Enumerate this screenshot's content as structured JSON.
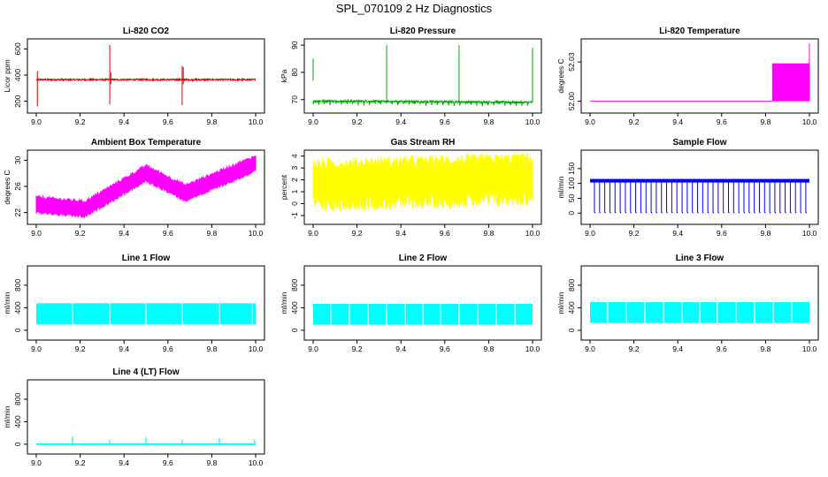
{
  "page_title": "SPL_070109  2 Hz Diagnostics",
  "chart_data": [
    {
      "type": "line",
      "title": "Li-820 CO2",
      "ylabel": "Licor ppm",
      "color": "#dd0000",
      "xlim": [
        9.0,
        10.0
      ],
      "ylim": [
        150,
        650
      ],
      "x_ticks": [
        9.0,
        9.2,
        9.4,
        9.6,
        9.8,
        10.0
      ],
      "x_tick_labels": [
        "9.0",
        "9.2",
        "9.4",
        "9.6",
        "9.8",
        "10.0"
      ],
      "y_ticks": [
        200,
        400,
        600
      ],
      "y_tick_labels": [
        "200",
        "400",
        "600"
      ],
      "pattern": "co2",
      "baseline": 365
    },
    {
      "type": "line",
      "title": "Li-820 Pressure",
      "ylabel": "kPa",
      "color": "#00aa00",
      "xlim": [
        9.0,
        10.0
      ],
      "ylim": [
        67,
        91
      ],
      "x_ticks": [
        9.0,
        9.2,
        9.4,
        9.6,
        9.8,
        10.0
      ],
      "x_tick_labels": [
        "9.0",
        "9.2",
        "9.4",
        "9.6",
        "9.8",
        "10.0"
      ],
      "y_ticks": [
        70,
        80,
        90
      ],
      "y_tick_labels": [
        "70",
        "80",
        "90"
      ],
      "pattern": "pressure",
      "baseline": 69.5
    },
    {
      "type": "line",
      "title": "Li-820 Temperature",
      "ylabel": "degrees C",
      "color": "#ff00ff",
      "xlim": [
        9.0,
        10.0
      ],
      "ylim": [
        51.995,
        52.045
      ],
      "x_ticks": [
        9.0,
        9.2,
        9.4,
        9.6,
        9.8,
        10.0
      ],
      "x_tick_labels": [
        "9.0",
        "9.2",
        "9.4",
        "9.6",
        "9.8",
        "10.0"
      ],
      "y_ticks": [
        52.0,
        52.03
      ],
      "y_tick_labels": [
        "52.00",
        "52.03"
      ],
      "pattern": "temp",
      "baseline": 52.0
    },
    {
      "type": "line",
      "title": "Ambient Box Temperature",
      "ylabel": "degrees C",
      "color": "#ff00ff",
      "xlim": [
        9.0,
        10.0
      ],
      "ylim": [
        21,
        31
      ],
      "x_ticks": [
        9.0,
        9.2,
        9.4,
        9.6,
        9.8,
        10.0
      ],
      "x_tick_labels": [
        "9.0",
        "9.2",
        "9.4",
        "9.6",
        "9.8",
        "10.0"
      ],
      "y_ticks": [
        22,
        26,
        30
      ],
      "y_tick_labels": [
        "22",
        "26",
        "30"
      ],
      "pattern": "ambient",
      "baseline": 23
    },
    {
      "type": "line",
      "title": "Gas Stream RH",
      "ylabel": "percent",
      "color": "#ffff00",
      "xlim": [
        9.0,
        10.0
      ],
      "ylim": [
        -1.3,
        4.2
      ],
      "x_ticks": [
        9.0,
        9.2,
        9.4,
        9.6,
        9.8,
        10.0
      ],
      "x_tick_labels": [
        "9.0",
        "9.2",
        "9.4",
        "9.6",
        "9.8",
        "10.0"
      ],
      "y_ticks": [
        -1,
        0,
        1,
        2,
        3,
        4
      ],
      "y_tick_labels": [
        "-1",
        "0",
        "1",
        "2",
        "3",
        "4"
      ],
      "pattern": "rh",
      "baseline": 2
    },
    {
      "type": "line",
      "title": "Sample Flow",
      "ylabel": "ml/min",
      "color": "#0000ff",
      "xlim": [
        9.0,
        10.0
      ],
      "ylim": [
        -20,
        200
      ],
      "x_ticks": [
        9.0,
        9.2,
        9.4,
        9.6,
        9.8,
        10.0
      ],
      "x_tick_labels": [
        "9.0",
        "9.2",
        "9.4",
        "9.6",
        "9.8",
        "10.0"
      ],
      "y_ticks": [
        0,
        50,
        100,
        150
      ],
      "y_tick_labels": [
        "0",
        "50",
        "100",
        "150"
      ],
      "pattern": "sample",
      "baseline": 110
    },
    {
      "type": "line",
      "title": "Line 1 Flow",
      "ylabel": "ml/min",
      "color": "#00ffff",
      "xlim": [
        9.0,
        10.0
      ],
      "ylim": [
        -80,
        1080
      ],
      "x_ticks": [
        9.0,
        9.2,
        9.4,
        9.6,
        9.8,
        10.0
      ],
      "x_tick_labels": [
        "9.0",
        "9.2",
        "9.4",
        "9.6",
        "9.8",
        "10.0"
      ],
      "y_ticks": [
        0,
        400,
        800
      ],
      "y_tick_labels": [
        "0",
        "400",
        "800"
      ],
      "pattern": "line",
      "baseline": 300
    },
    {
      "type": "line",
      "title": "Line 2 Flow",
      "ylabel": "ml/min",
      "color": "#00ffff",
      "xlim": [
        9.0,
        10.0
      ],
      "ylim": [
        -80,
        1080
      ],
      "x_ticks": [
        9.0,
        9.2,
        9.4,
        9.6,
        9.8,
        10.0
      ],
      "x_tick_labels": [
        "9.0",
        "9.2",
        "9.4",
        "9.6",
        "9.8",
        "10.0"
      ],
      "y_ticks": [
        0,
        400,
        800
      ],
      "y_tick_labels": [
        "0",
        "400",
        "800"
      ],
      "pattern": "line",
      "baseline": 290
    },
    {
      "type": "line",
      "title": "Line 3 Flow",
      "ylabel": "ml/min",
      "color": "#00ffff",
      "xlim": [
        9.0,
        10.0
      ],
      "ylim": [
        -80,
        1080
      ],
      "x_ticks": [
        9.0,
        9.2,
        9.4,
        9.6,
        9.8,
        10.0
      ],
      "x_tick_labels": [
        "9.0",
        "9.2",
        "9.4",
        "9.6",
        "9.8",
        "10.0"
      ],
      "y_ticks": [
        0,
        400,
        800
      ],
      "y_tick_labels": [
        "0",
        "400",
        "800"
      ],
      "pattern": "line",
      "baseline": 320
    },
    {
      "type": "line",
      "title": "Line 4 (LT) Flow",
      "ylabel": "ml/min",
      "color": "#00ffff",
      "xlim": [
        9.0,
        10.0
      ],
      "ylim": [
        -80,
        1080
      ],
      "x_ticks": [
        9.0,
        9.2,
        9.4,
        9.6,
        9.8,
        10.0
      ],
      "x_tick_labels": [
        "9.0",
        "9.2",
        "9.4",
        "9.6",
        "9.8",
        "10.0"
      ],
      "y_ticks": [
        0,
        400,
        800
      ],
      "y_tick_labels": [
        "0",
        "400",
        "800"
      ],
      "pattern": "line4",
      "baseline": 0
    }
  ]
}
